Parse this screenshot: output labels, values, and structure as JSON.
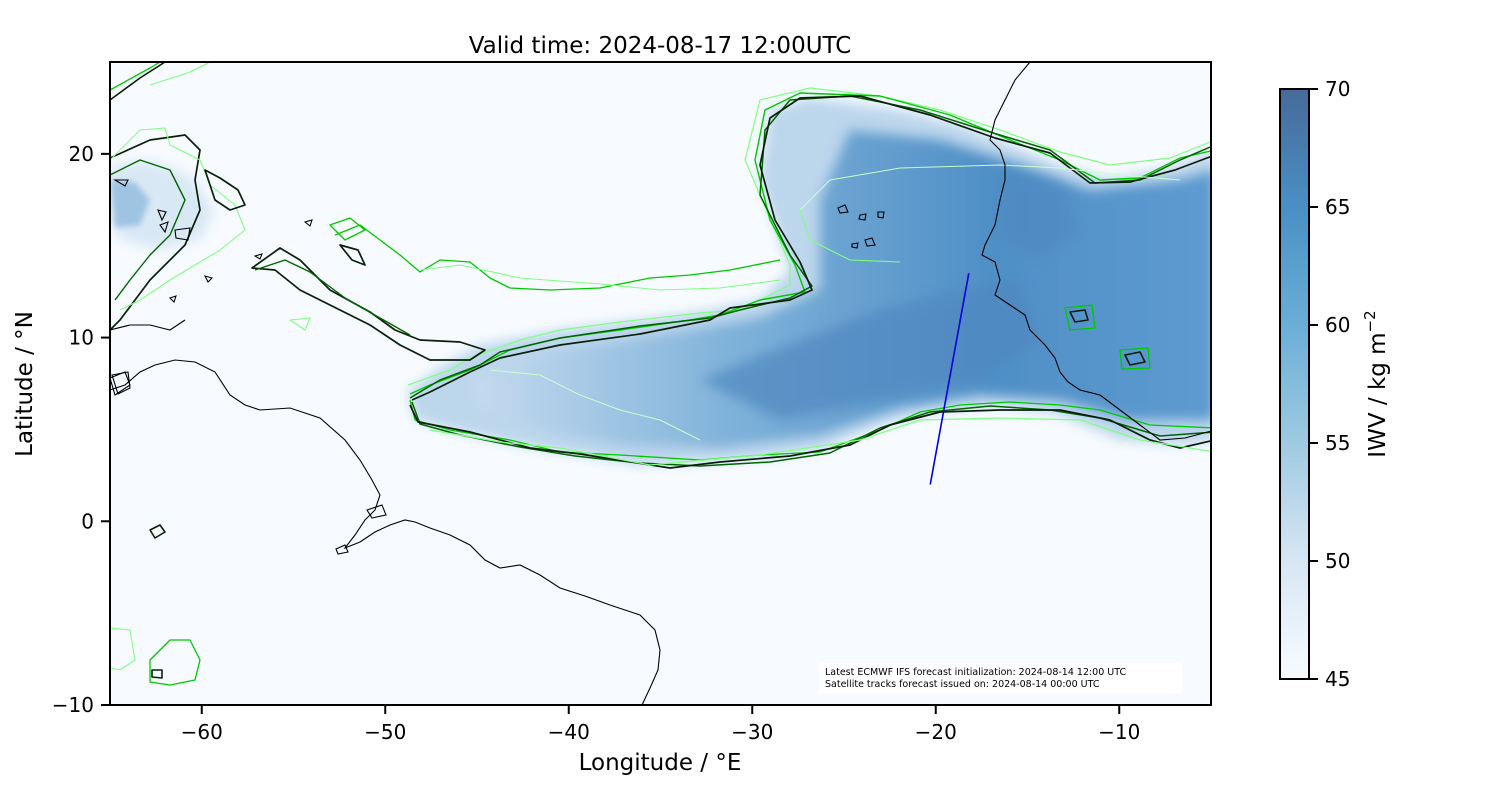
{
  "figure": {
    "title": "Valid time: 2024-08-17 12:00UTC",
    "xlabel": "Longitude / °E",
    "ylabel": "Latitude / °N",
    "x_ticks": [
      -60,
      -50,
      -40,
      -30,
      -20,
      -10
    ],
    "y_ticks": [
      20,
      10,
      0,
      -10
    ],
    "xlim": [
      -65,
      -5
    ],
    "ylim": [
      -10,
      25
    ],
    "annotation_lines": [
      "Latest ECMWF IFS forecast initialization: 2024-08-14 12:00 UTC",
      "Satellite tracks forecast issued on: 2024-08-14 00:00 UTC"
    ]
  },
  "colorbar": {
    "label": "IWV / kg m",
    "label_superscript": "−2",
    "ticks": [
      70,
      65,
      60,
      55,
      50,
      45
    ],
    "range": [
      45,
      70
    ],
    "colormap": "Blues",
    "color_low": "#f7fbff",
    "color_high": "#466a99"
  },
  "colors": {
    "coastline": "#000000",
    "contour_dark": "#0a3d0a",
    "contour_mid": "#006400",
    "contour_bright": "#00c800",
    "contour_light": "#80ff80",
    "satellite_track": "#0000dd",
    "background": "#f7fbff"
  },
  "satellite_track": {
    "start": [
      -20.3,
      2.0
    ],
    "end": [
      -18.2,
      13.5
    ]
  }
}
